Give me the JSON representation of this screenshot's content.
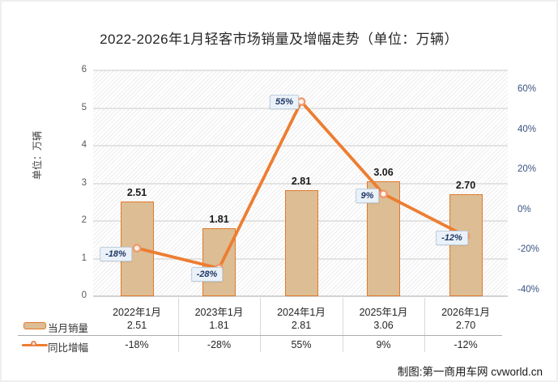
{
  "title": "2022-2026年1月轻客市场销量及增幅走势（单位：万辆）",
  "y_axis_title": "单位：万辆",
  "footer": "制图:第一商用车网 cvworld.cn",
  "legend": {
    "bar_series": "当月销量",
    "line_series": "同比增幅"
  },
  "chart_data": {
    "type": "bar",
    "subtype": "bar+line dual-axis",
    "title": "2022-2026年1月轻客市场销量及增幅走势（单位：万辆）",
    "categories": [
      "2022年1月",
      "2023年1月",
      "2024年1月",
      "2025年1月",
      "2026年1月"
    ],
    "series": [
      {
        "name": "当月销量",
        "type": "bar",
        "axis": "left",
        "values": [
          2.51,
          1.81,
          2.81,
          3.06,
          2.7
        ],
        "labels": [
          "2.51",
          "1.81",
          "2.81",
          "3.06",
          "2.70"
        ]
      },
      {
        "name": "同比增幅",
        "type": "line",
        "axis": "right",
        "values": [
          -18,
          -28,
          55,
          9,
          -12
        ],
        "labels": [
          "-18%",
          "-28%",
          "55%",
          "9%",
          "-12%"
        ]
      }
    ],
    "left_axis": {
      "label": "单位：万辆",
      "ticks": [
        "6",
        "5",
        "4",
        "3",
        "2",
        "1",
        "0"
      ],
      "range": [
        0,
        6
      ],
      "grid": true
    },
    "right_axis": {
      "ticks": [
        "60%",
        "40%",
        "20%",
        "0%",
        "-20%",
        "-40%"
      ],
      "range": [
        -40,
        60
      ]
    },
    "legend_position": "bottom-data-table",
    "colors": {
      "bar_fill": "#DDBD93",
      "bar_border": "#E07A2E",
      "line": "#ED7D31",
      "marker_ring": "#F09A6E",
      "marker_fill": "#FDF3EC",
      "badge_bg": "#EAF1F9",
      "badge_border": "#BECFDE",
      "badge_text": "#1F3864",
      "right_axis_text": "#3A5380",
      "left_axis_text": "#595959"
    }
  }
}
